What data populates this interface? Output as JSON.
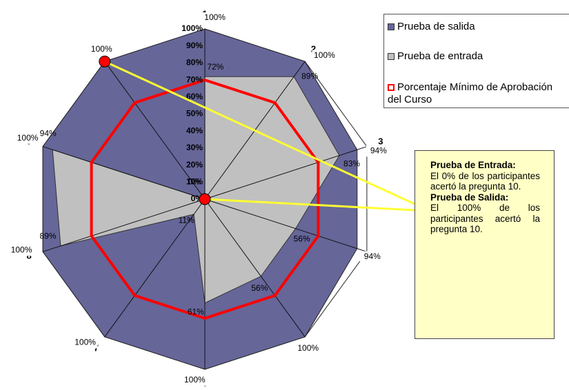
{
  "chart_data": {
    "type": "radar",
    "categories": [
      "1",
      "2",
      "3",
      "4",
      "5",
      "6",
      "7",
      "8",
      "9",
      "10"
    ],
    "radial_tick_labels": [
      "0%",
      "10%",
      "20%",
      "30%",
      "40%",
      "50%",
      "60%",
      "70%",
      "80%",
      "90%",
      "100%"
    ],
    "rlim": [
      0,
      100
    ],
    "series": [
      {
        "name": "Prueba de salida",
        "values": [
          100,
          100,
          94,
          94,
          100,
          100,
          100,
          100,
          100,
          100
        ],
        "color": "#666699"
      },
      {
        "name": "Prueba de entrada",
        "values": [
          72,
          89,
          83,
          56,
          56,
          61,
          11,
          89,
          94,
          0
        ],
        "color": "#c0c0c0"
      },
      {
        "name": "Porcentaje Mínimo de Aprobación del Curso",
        "values": [
          70,
          70,
          70,
          70,
          70,
          70,
          70,
          70,
          70,
          70
        ],
        "color": "#ff0000"
      }
    ],
    "data_labels": {
      "salida": [
        "100%",
        "100%",
        "94%",
        "94%",
        "100%",
        "100%",
        "100%",
        "100%",
        "100%",
        "100%"
      ],
      "entrada": [
        "72%",
        "89%",
        "83%",
        "56%",
        "56%",
        "61%",
        "11%",
        "89%",
        "94%",
        "0%"
      ]
    },
    "legend_position": "top-right"
  },
  "legend": {
    "salida": "Prueba de salida",
    "entrada": "Prueba de entrada",
    "minimo_line1": "Porcentaje Mínimo de Aprobación",
    "minimo_line2": "del Curso"
  },
  "note": {
    "title_entrada": "Prueba de Entrada:",
    "text_entrada": "El 0% de los participantes acertó la pregunta 10.",
    "title_salida": "Prueba de Salida:",
    "text_salida": "El 100% de los participantes acertó la pregunta 10."
  },
  "colors": {
    "salida": "#666699",
    "entrada": "#c0c0c0",
    "minimo": "#ff0000",
    "callout": "#ffff33",
    "marker": "#ff0000"
  }
}
